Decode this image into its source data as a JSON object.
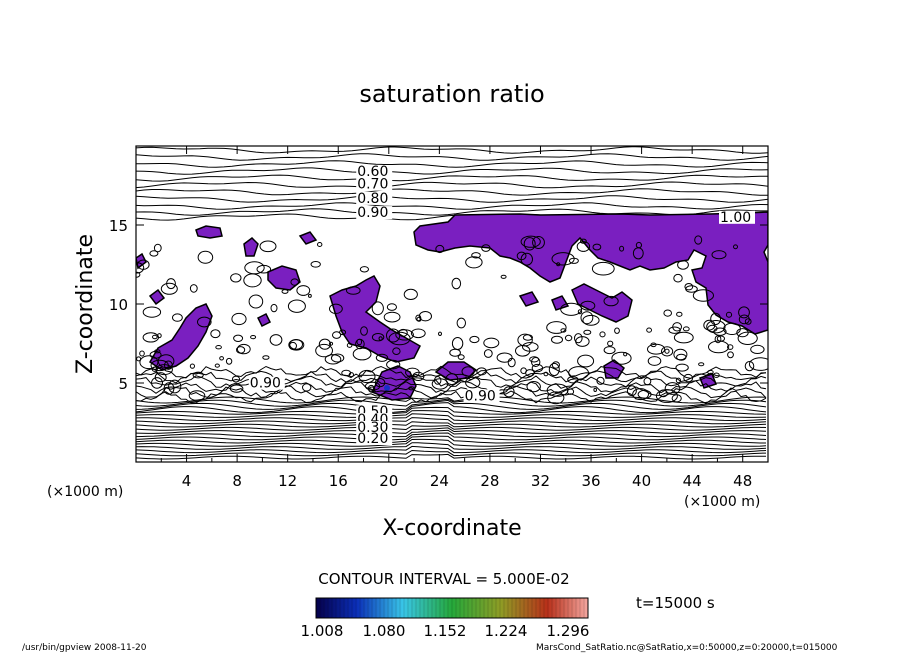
{
  "chart_data": {
    "type": "contour",
    "title": "saturation ratio",
    "xlabel": "X-coordinate",
    "ylabel": "Z-coordinate",
    "x_unit": "(×1000 m)",
    "y_unit": "(×1000 m)",
    "xlim": [
      0,
      50
    ],
    "ylim": [
      0,
      20
    ],
    "x_ticks": [
      "4",
      "8",
      "12",
      "16",
      "20",
      "24",
      "28",
      "32",
      "36",
      "40",
      "44",
      "48"
    ],
    "y_ticks": [
      "5",
      "10",
      "15"
    ],
    "x_tick_values": [
      4,
      8,
      12,
      16,
      20,
      24,
      28,
      32,
      36,
      40,
      44,
      48
    ],
    "y_tick_values": [
      5,
      10,
      15
    ],
    "contour_labels": [
      {
        "text": "0.60",
        "x": 17.5,
        "z": 18.1
      },
      {
        "text": "0.70",
        "x": 17.5,
        "z": 17.3
      },
      {
        "text": "0.80",
        "x": 17.5,
        "z": 16.4
      },
      {
        "text": "0.90",
        "x": 17.5,
        "z": 15.5
      },
      {
        "text": "1.00",
        "x": 46.2,
        "z": 15.2
      },
      {
        "text": "0.90",
        "x": 26.0,
        "z": 3.9
      },
      {
        "text": "0.90",
        "x": 9.0,
        "z": 4.7
      },
      {
        "text": "0.50",
        "x": 17.5,
        "z": 2.9
      },
      {
        "text": "0.40",
        "x": 17.5,
        "z": 2.4
      },
      {
        "text": "0.30",
        "x": 17.5,
        "z": 1.9
      },
      {
        "text": "0.20",
        "x": 17.5,
        "z": 1.2
      }
    ],
    "contour_interval_label": "CONTOUR INTERVAL = 5.000E-02",
    "colorbar": {
      "ticks": [
        "1.008",
        "1.080",
        "1.152",
        "1.224",
        "1.296"
      ],
      "range": [
        1.008,
        1.296
      ]
    },
    "fill_color": "#7a1fc0",
    "grid": false
  },
  "time_label": "t=15000 s",
  "footer": {
    "left": "/usr/bin/gpview   2008-11-20",
    "right": "MarsCond_SatRatio.nc@SatRatio,x=0:50000,z=0:20000,t=015000"
  }
}
